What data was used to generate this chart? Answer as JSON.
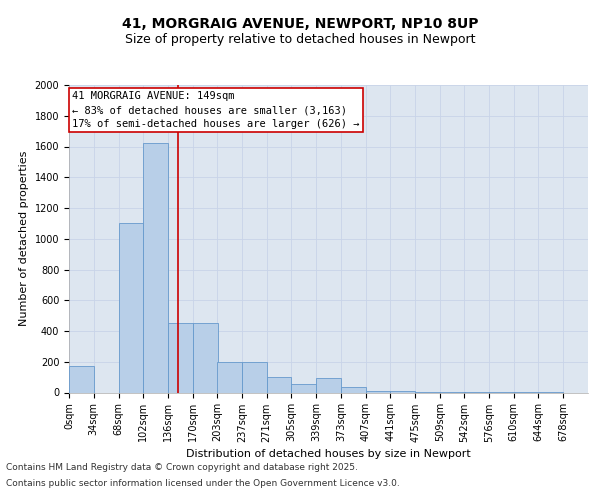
{
  "title": "41, MORGRAIG AVENUE, NEWPORT, NP10 8UP",
  "subtitle": "Size of property relative to detached houses in Newport",
  "xlabel": "Distribution of detached houses by size in Newport",
  "ylabel": "Number of detached properties",
  "bin_labels": [
    "0sqm",
    "34sqm",
    "68sqm",
    "102sqm",
    "136sqm",
    "170sqm",
    "203sqm",
    "237sqm",
    "271sqm",
    "305sqm",
    "339sqm",
    "373sqm",
    "407sqm",
    "441sqm",
    "475sqm",
    "509sqm",
    "542sqm",
    "576sqm",
    "610sqm",
    "644sqm",
    "678sqm"
  ],
  "bin_edges": [
    0,
    34,
    68,
    102,
    136,
    170,
    203,
    237,
    271,
    305,
    339,
    373,
    407,
    441,
    475,
    509,
    542,
    576,
    610,
    644,
    678
  ],
  "bar_heights": [
    175,
    0,
    1100,
    1625,
    450,
    450,
    200,
    200,
    100,
    55,
    95,
    35,
    12,
    8,
    3,
    3,
    2,
    1,
    1,
    1
  ],
  "bar_color": "#b8cfe8",
  "bar_edge_color": "#6699cc",
  "property_size": 149,
  "red_line_x": 149,
  "annotation_text_line1": "41 MORGRAIG AVENUE: 149sqm",
  "annotation_text_line2": "← 83% of detached houses are smaller (3,163)",
  "annotation_text_line3": "17% of semi-detached houses are larger (626) →",
  "annotation_box_color": "white",
  "annotation_border_color": "#cc0000",
  "red_line_color": "#cc0000",
  "ylim": [
    0,
    2000
  ],
  "yticks": [
    0,
    200,
    400,
    600,
    800,
    1000,
    1200,
    1400,
    1600,
    1800,
    2000
  ],
  "grid_color": "#c8d4e8",
  "background_color": "#dde6f0",
  "footer_line1": "Contains HM Land Registry data © Crown copyright and database right 2025.",
  "footer_line2": "Contains public sector information licensed under the Open Government Licence v3.0.",
  "title_fontsize": 10,
  "subtitle_fontsize": 9,
  "axis_label_fontsize": 8,
  "tick_fontsize": 7,
  "footer_fontsize": 6.5,
  "annotation_fontsize": 7.5
}
